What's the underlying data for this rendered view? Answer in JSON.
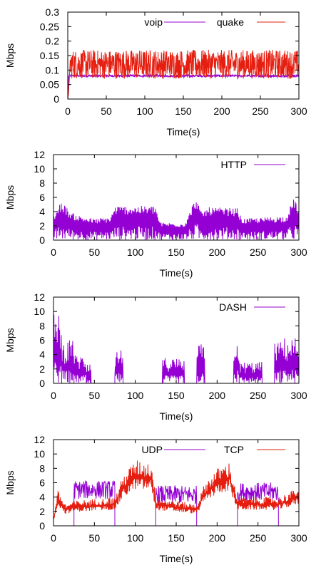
{
  "chart_data": [
    {
      "type": "line",
      "xlabel": "Time(s)",
      "ylabel": "Mbps",
      "xlim": [
        0,
        300
      ],
      "ylim": [
        0,
        0.3
      ],
      "xticks": [
        "0",
        "50",
        "100",
        "150",
        "200",
        "250",
        "300"
      ],
      "yticks": [
        "0",
        "0.05",
        "0.1",
        "0.15",
        "0.2",
        "0.25",
        "0.3"
      ],
      "legend_position": "top-right",
      "grid": false,
      "series": [
        {
          "name": "voip",
          "color": "#9400d3",
          "mean": 0.08,
          "noise": 0.004,
          "points": [
            [
              0,
              0.0
            ],
            [
              1,
              0.08
            ],
            [
              300,
              0.08
            ]
          ]
        },
        {
          "name": "quake",
          "color": "#e51e10",
          "mean": 0.12,
          "noise": 0.05,
          "points": [
            [
              0,
              0.0
            ],
            [
              1,
              0.02
            ],
            [
              3,
              0.12
            ],
            [
              300,
              0.12
            ]
          ]
        }
      ]
    },
    {
      "type": "line",
      "xlabel": "Time(s)",
      "ylabel": "Mbps",
      "xlim": [
        0,
        300
      ],
      "ylim": [
        0,
        12
      ],
      "xticks": [
        "0",
        "50",
        "100",
        "150",
        "200",
        "250",
        "300"
      ],
      "yticks": [
        "0",
        "2",
        "4",
        "6",
        "8",
        "10",
        "12"
      ],
      "legend_position": "top-right",
      "grid": false,
      "series": [
        {
          "name": "HTTP",
          "color": "#9400d3",
          "envelope": [
            [
              0,
              3.5
            ],
            [
              10,
              5.5
            ],
            [
              20,
              4
            ],
            [
              30,
              3.5
            ],
            [
              50,
              3
            ],
            [
              70,
              3.3
            ],
            [
              75,
              4.8
            ],
            [
              125,
              4.8
            ],
            [
              130,
              2.5
            ],
            [
              160,
              2.4
            ],
            [
              165,
              3.5
            ],
            [
              170,
              5
            ],
            [
              175,
              6
            ],
            [
              180,
              4
            ],
            [
              190,
              4.6
            ],
            [
              225,
              4.5
            ],
            [
              230,
              3
            ],
            [
              260,
              3.2
            ],
            [
              270,
              3.3
            ],
            [
              285,
              3.4
            ],
            [
              290,
              5
            ],
            [
              295,
              6
            ],
            [
              300,
              4
            ]
          ]
        }
      ]
    },
    {
      "type": "line",
      "xlabel": "Time(s)",
      "ylabel": "Mbps",
      "xlim": [
        0,
        300
      ],
      "ylim": [
        0,
        12
      ],
      "xticks": [
        "0",
        "50",
        "100",
        "150",
        "200",
        "250",
        "300"
      ],
      "yticks": [
        "0",
        "2",
        "4",
        "6",
        "8",
        "10",
        "12"
      ],
      "legend_position": "top-right",
      "grid": false,
      "series": [
        {
          "name": "DASH",
          "color": "#9400d3",
          "bursts": [
            [
              0,
              10,
              9.8
            ],
            [
              10,
              25,
              6
            ],
            [
              25,
              40,
              4
            ],
            [
              40,
              46,
              2.6
            ],
            [
              75,
              85,
              4.8
            ],
            [
              133,
              160,
              3.6
            ],
            [
              175,
              185,
              5.5
            ],
            [
              220,
              227,
              6.3
            ],
            [
              227,
              255,
              3
            ],
            [
              270,
              278,
              5.8
            ],
            [
              278,
              300,
              6.4
            ]
          ]
        }
      ]
    },
    {
      "type": "line",
      "xlabel": "Time(s)",
      "ylabel": "Mbps",
      "xlim": [
        0,
        300
      ],
      "ylim": [
        0,
        12
      ],
      "xticks": [
        "0",
        "50",
        "100",
        "150",
        "200",
        "250",
        "300"
      ],
      "yticks": [
        "0",
        "2",
        "4",
        "6",
        "8",
        "10",
        "12"
      ],
      "legend_position": "top-right",
      "grid": false,
      "series": [
        {
          "name": "UDP",
          "color": "#9400d3",
          "segments": [
            [
              0,
              25,
              0
            ],
            [
              25,
              75,
              4.5
            ],
            [
              75,
              125,
              0
            ],
            [
              125,
              175,
              3.8
            ],
            [
              175,
              225,
              0
            ],
            [
              225,
              275,
              4.2
            ],
            [
              275,
              300,
              0
            ]
          ]
        },
        {
          "name": "TCP",
          "color": "#e51e10",
          "envelope": [
            [
              0,
              1
            ],
            [
              5,
              5
            ],
            [
              15,
              3
            ],
            [
              25,
              3.5
            ],
            [
              75,
              4
            ],
            [
              85,
              7
            ],
            [
              100,
              9.2
            ],
            [
              120,
              8.8
            ],
            [
              125,
              4
            ],
            [
              175,
              3
            ],
            [
              185,
              6
            ],
            [
              200,
              8
            ],
            [
              215,
              8.9
            ],
            [
              225,
              4
            ],
            [
              275,
              4
            ],
            [
              285,
              4.5
            ],
            [
              300,
              5.5
            ]
          ]
        }
      ]
    }
  ]
}
